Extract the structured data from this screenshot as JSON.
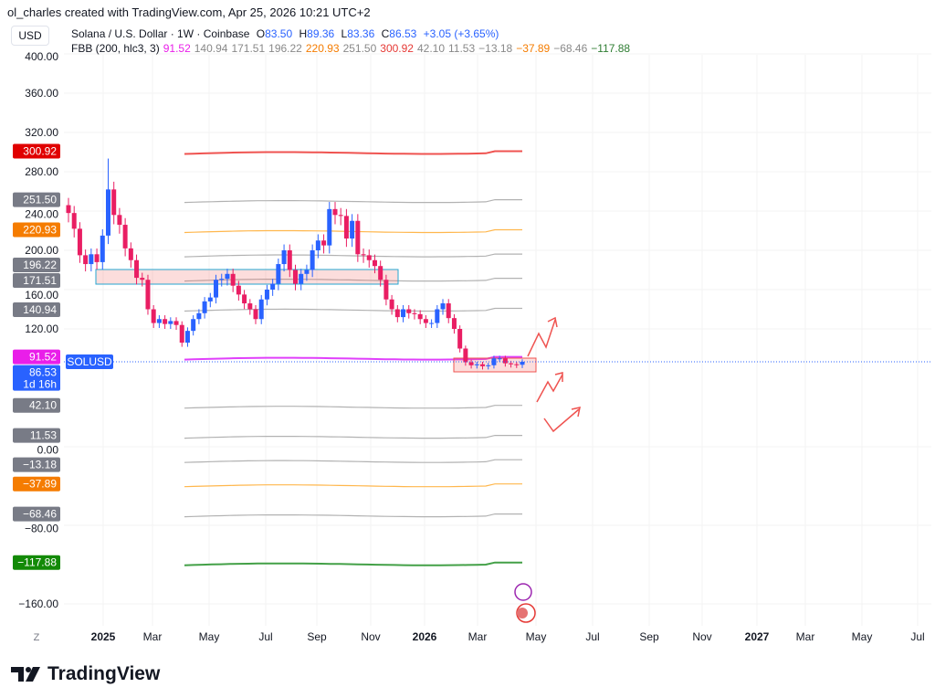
{
  "credit": "ol_charles created with TradingView.com, Apr 25, 2026 10:21 UTC+2",
  "currency": "USD",
  "symbol_title": "Solana / U.S. Dollar · 1W · Coinbase",
  "ohlc": {
    "o_label": "O",
    "o": "83.50",
    "h_label": "H",
    "h": "89.36",
    "l_label": "L",
    "l": "83.36",
    "c_label": "C",
    "c": "86.53",
    "change": "+3.05 (+3.65%)"
  },
  "indicator": {
    "name": "FBB (200, hlc3, 3)",
    "values": [
      {
        "text": "91.52",
        "color": "#e91ee9"
      },
      {
        "text": "140.94",
        "color": "#888"
      },
      {
        "text": "171.51",
        "color": "#888"
      },
      {
        "text": "196.22",
        "color": "#888"
      },
      {
        "text": "220.93",
        "color": "#f57c00"
      },
      {
        "text": "251.50",
        "color": "#888"
      },
      {
        "text": "300.92",
        "color": "#e53935"
      },
      {
        "text": "42.10",
        "color": "#888"
      },
      {
        "text": "11.53",
        "color": "#888"
      },
      {
        "text": "−13.18",
        "color": "#888"
      },
      {
        "text": "−37.89",
        "color": "#f57c00"
      },
      {
        "text": "−68.46",
        "color": "#888"
      },
      {
        "text": "−117.88",
        "color": "#2e7d32"
      }
    ]
  },
  "symbol_tag": "SOLUSD",
  "countdown": "1d 16h",
  "logo": "TradingView",
  "z_button": "Z",
  "colors": {
    "up": "#2962ff",
    "down": "#e91e63",
    "basis": "#e91ee9"
  },
  "chart_data": {
    "type": "candlestick",
    "ylim": [
      -180,
      410
    ],
    "y_ticks": [
      "400.00",
      "360.00",
      "320.00",
      "280.00",
      "240.00",
      "200.00",
      "160.00",
      "120.00",
      "0.00",
      "−80.00",
      "−160.00"
    ],
    "y_tick_values": [
      400,
      360,
      320,
      280,
      240,
      200,
      160,
      120,
      0,
      -80,
      -160
    ],
    "x_ticks": [
      "2025",
      "Mar",
      "May",
      "Jul",
      "Sep",
      "Nov",
      "2026",
      "Mar",
      "May",
      "Jul",
      "Sep",
      "Nov",
      "2027",
      "Mar",
      "May",
      "Jul"
    ],
    "closes": [
      238,
      222,
      195,
      186,
      196,
      188,
      215,
      262,
      236,
      226,
      202,
      190,
      172,
      170,
      140,
      126,
      130,
      125,
      128,
      124,
      106,
      118,
      130,
      136,
      148,
      152,
      170,
      171,
      176,
      164,
      155,
      146,
      140,
      130,
      150,
      160,
      166,
      186,
      200,
      180,
      166,
      176,
      180,
      200,
      210,
      205,
      242,
      236,
      235,
      212,
      230,
      196,
      195,
      190,
      184,
      170,
      150,
      140,
      132,
      140,
      136,
      135,
      130,
      126,
      126,
      140,
      146,
      131,
      120,
      100,
      86,
      83,
      84,
      82,
      83,
      90,
      90,
      85,
      84,
      83.5,
      86.53
    ],
    "bands": [
      {
        "value": 300.92,
        "color": "#ef5350",
        "width": 2
      },
      {
        "value": 251.5,
        "color": "#b2b2b2",
        "width": 1.2
      },
      {
        "value": 220.93,
        "color": "#ffb74d",
        "width": 1.2
      },
      {
        "value": 196.22,
        "color": "#b2b2b2",
        "width": 1.2
      },
      {
        "value": 171.51,
        "color": "#b2b2b2",
        "width": 1.2
      },
      {
        "value": 140.94,
        "color": "#b2b2b2",
        "width": 1.2
      },
      {
        "value": 91.52,
        "color": "#e040fb",
        "width": 2
      },
      {
        "value": 42.1,
        "color": "#b2b2b2",
        "width": 1.2
      },
      {
        "value": 11.53,
        "color": "#b2b2b2",
        "width": 1.2
      },
      {
        "value": -13.18,
        "color": "#b2b2b2",
        "width": 1.2
      },
      {
        "value": -37.89,
        "color": "#ffb74d",
        "width": 1.2
      },
      {
        "value": -68.46,
        "color": "#b2b2b2",
        "width": 1.2
      },
      {
        "value": -117.88,
        "color": "#43a047",
        "width": 2
      }
    ],
    "band_labels": [
      {
        "text": "300.92",
        "value": 300.92,
        "bg": "#e00000"
      },
      {
        "text": "251.50",
        "value": 251.5,
        "bg": "#787b86"
      },
      {
        "text": "220.93",
        "value": 220.93,
        "bg": "#f57c00"
      },
      {
        "text": "196.22",
        "value": 196.22,
        "bg": "#787b86"
      },
      {
        "text": "171.51",
        "value": 171.51,
        "bg": "#787b86"
      },
      {
        "text": "140.94",
        "value": 140.94,
        "bg": "#787b86"
      },
      {
        "text": "91.52",
        "value": 91.52,
        "bg": "#e91ee9"
      },
      {
        "text": "42.10",
        "value": 42.1,
        "bg": "#787b86"
      },
      {
        "text": "11.53",
        "value": 11.53,
        "bg": "#787b86"
      },
      {
        "text": "−13.18",
        "value": -13.18,
        "bg": "#787b86"
      },
      {
        "text": "−37.89",
        "value": -37.89,
        "bg": "#f57c00"
      },
      {
        "text": "−68.46",
        "value": -68.46,
        "bg": "#787b86"
      },
      {
        "text": "−117.88",
        "value": -117.88,
        "bg": "#138a07"
      }
    ],
    "last_price": 86.53
  }
}
